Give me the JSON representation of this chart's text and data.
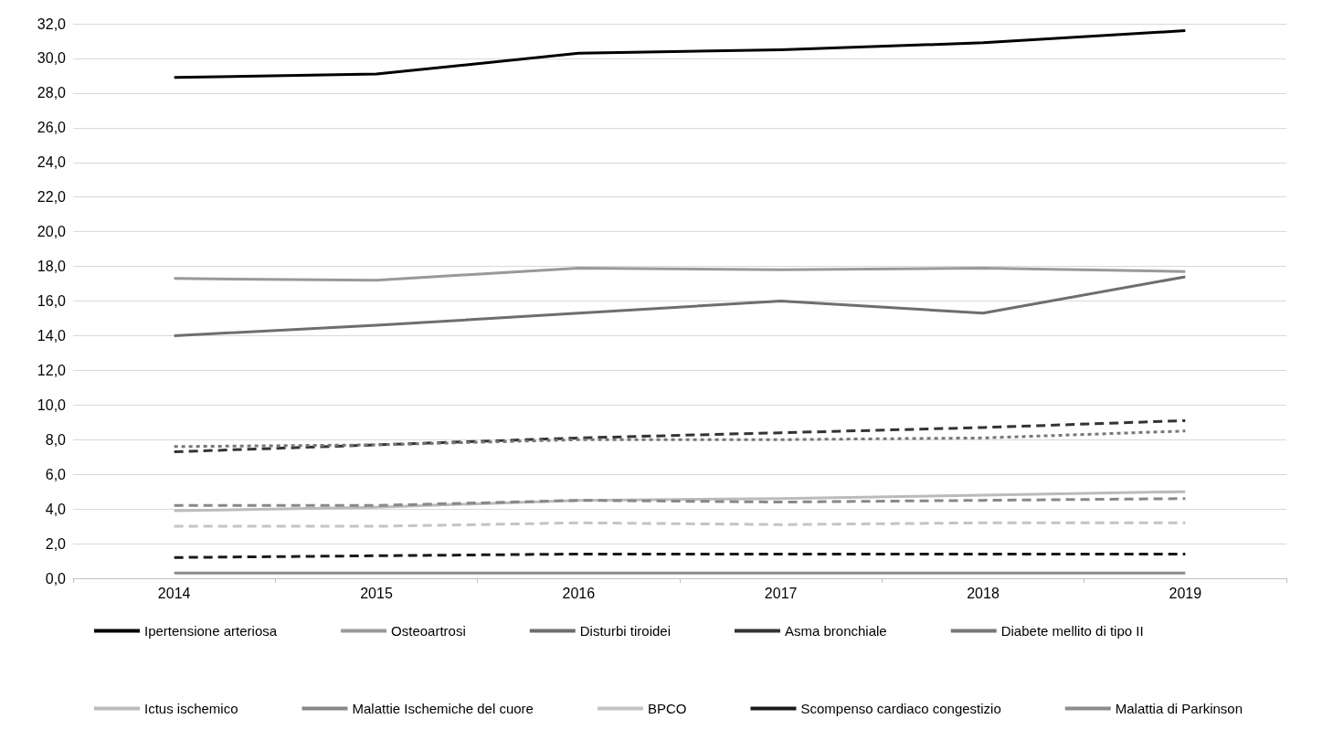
{
  "chart_data": {
    "type": "line",
    "categories": [
      "2014",
      "2015",
      "2016",
      "2017",
      "2018",
      "2019"
    ],
    "ylim": [
      0,
      32
    ],
    "yticks": [
      {
        "value": 0,
        "label": "0,0"
      },
      {
        "value": 2,
        "label": "2,0"
      },
      {
        "value": 4,
        "label": "4,0"
      },
      {
        "value": 6,
        "label": "6,0"
      },
      {
        "value": 8,
        "label": "8,0"
      },
      {
        "value": 10,
        "label": "10,0"
      },
      {
        "value": 12,
        "label": "12,0"
      },
      {
        "value": 14,
        "label": "14,0"
      },
      {
        "value": 16,
        "label": "16,0"
      },
      {
        "value": 18,
        "label": "18,0"
      },
      {
        "value": 20,
        "label": "20,0"
      },
      {
        "value": 22,
        "label": "22,0"
      },
      {
        "value": 24,
        "label": "24,0"
      },
      {
        "value": 26,
        "label": "26,0"
      },
      {
        "value": 28,
        "label": "28,0"
      },
      {
        "value": 30,
        "label": "30,0"
      },
      {
        "value": 32,
        "label": "32,0"
      }
    ],
    "grid": "y",
    "legend": "bottom",
    "marker": "none",
    "series": [
      {
        "name": "Ipertensione arteriosa",
        "color": "#000000",
        "line_style": "solid",
        "values": [
          28.9,
          29.1,
          30.3,
          30.5,
          30.9,
          31.6
        ]
      },
      {
        "name": "Osteoartrosi",
        "color": "#999999",
        "line_style": "solid",
        "values": [
          17.3,
          17.2,
          17.9,
          17.8,
          17.9,
          17.7
        ]
      },
      {
        "name": "Disturbi tiroidei",
        "color": "#6e6e6e",
        "line_style": "solid",
        "values": [
          14.0,
          14.6,
          15.3,
          16.0,
          15.3,
          17.4
        ]
      },
      {
        "name": "Asma bronchiale",
        "color": "#333333",
        "line_style": "dashed",
        "values": [
          7.3,
          7.7,
          8.1,
          8.4,
          8.7,
          9.1
        ]
      },
      {
        "name": "Diabete mellito di tipo II",
        "color": "#777777",
        "line_style": "dotted",
        "values": [
          7.6,
          7.7,
          8.0,
          8.0,
          8.1,
          8.5
        ]
      },
      {
        "name": "Ictus ischemico",
        "color": "#bbbbbb",
        "line_style": "solid",
        "values": [
          3.9,
          4.1,
          4.5,
          4.6,
          4.8,
          5.0
        ]
      },
      {
        "name": "Malattie Ischemiche del cuore",
        "color": "#888888",
        "line_style": "dashed",
        "values": [
          4.2,
          4.2,
          4.5,
          4.4,
          4.5,
          4.6
        ]
      },
      {
        "name": "BPCO",
        "color": "#c4c4c4",
        "line_style": "dashed",
        "values": [
          3.0,
          3.0,
          3.2,
          3.1,
          3.2,
          3.2
        ]
      },
      {
        "name": "Scompenso cardiaco congestizio",
        "color": "#1a1a1a",
        "line_style": "dashed",
        "values": [
          1.2,
          1.3,
          1.4,
          1.4,
          1.4,
          1.4
        ]
      },
      {
        "name": "Malattia di Parkinson",
        "color": "#8c8c8c",
        "line_style": "solid",
        "values": [
          0.3,
          0.3,
          0.3,
          0.3,
          0.3,
          0.3
        ]
      }
    ]
  }
}
